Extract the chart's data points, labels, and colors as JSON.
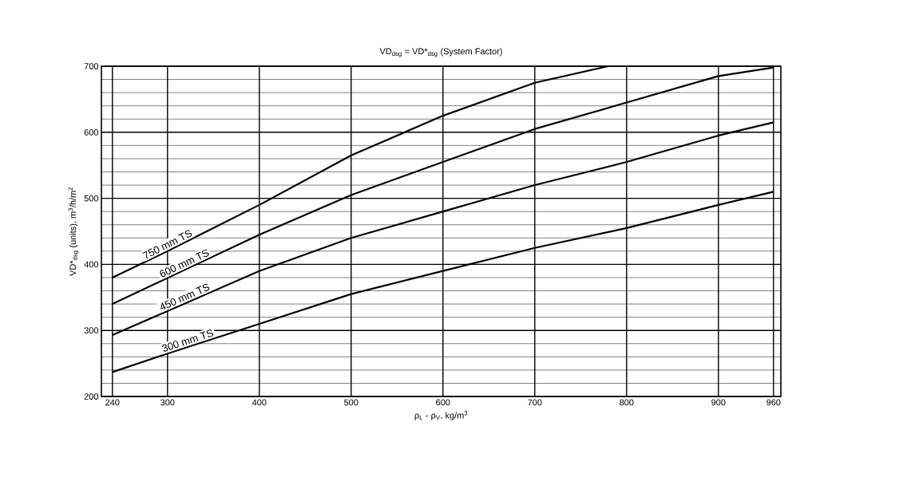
{
  "chart_data": {
    "type": "line",
    "title": "VD$_{dsg}$ = VD*$_{dsg}$ (System Factor)",
    "xlabel": "ρ$_{L}$ - ρ$_{V}$, kg/m$^{3}$",
    "ylabel": "VD*$_{dsg}$ (units), m$^{3}$/h/m$^{2}$",
    "xlim": [
      228,
      968
    ],
    "ylim": [
      200,
      700
    ],
    "xticks": [
      240,
      300,
      400,
      500,
      600,
      700,
      800,
      900,
      960
    ],
    "yticks": [
      200,
      300,
      400,
      500,
      600,
      700
    ],
    "grid": true,
    "legend": false,
    "marker": "none",
    "line_style": "solid",
    "series": [
      {
        "name": "750 mm TS",
        "color": "#000000",
        "x": [
          240,
          300,
          400,
          500,
          600,
          700,
          780
        ],
        "values": [
          380,
          420,
          490,
          565,
          625,
          675,
          700
        ]
      },
      {
        "name": "600 mm TS",
        "color": "#000000",
        "x": [
          240,
          400,
          500,
          600,
          700,
          800,
          900,
          960
        ],
        "values": [
          340,
          445,
          505,
          555,
          605,
          645,
          685,
          698
        ]
      },
      {
        "name": "450 mm TS",
        "color": "#000000",
        "x": [
          240,
          400,
          500,
          600,
          700,
          800,
          900,
          960
        ],
        "values": [
          293,
          390,
          440,
          480,
          520,
          555,
          595,
          615
        ]
      },
      {
        "name": "300 mm TS",
        "color": "#000000",
        "x": [
          240,
          300,
          400,
          500,
          600,
          700,
          800,
          900,
          960
        ],
        "values": [
          237,
          265,
          310,
          355,
          390,
          425,
          455,
          490,
          510
        ]
      }
    ]
  }
}
